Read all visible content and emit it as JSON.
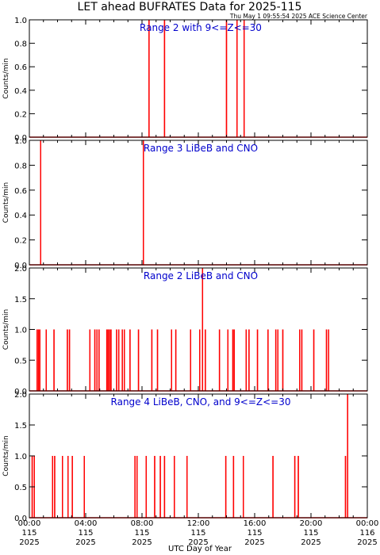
{
  "title": "LET ahead BUFRATES Data for 2025-115",
  "timestamp": "Thu May  1 09:55:54 2025 ACE Science Center",
  "xlabel": "UTC Day of Year",
  "x_ticks": [
    {
      "hour": 0,
      "time": "00:00",
      "doy": "115",
      "year": "2025"
    },
    {
      "hour": 4,
      "time": "04:00",
      "doy": "115",
      "year": "2025"
    },
    {
      "hour": 8,
      "time": "08:00",
      "doy": "115",
      "year": "2025"
    },
    {
      "hour": 12,
      "time": "12:00",
      "doy": "115",
      "year": "2025"
    },
    {
      "hour": 16,
      "time": "16:00",
      "doy": "115",
      "year": "2025"
    },
    {
      "hour": 20,
      "time": "20:00",
      "doy": "115",
      "year": "2025"
    },
    {
      "hour": 24,
      "time": "00:00",
      "doy": "116",
      "year": "2025"
    }
  ],
  "colors": {
    "series": "#ff0000",
    "panel_title": "#0000cc",
    "axes": "#000000"
  },
  "chart_data": [
    {
      "type": "line",
      "title": "Range 2 with 9<=Z<=30",
      "ylabel": "Counts/min",
      "xlim": [
        0,
        24
      ],
      "ylim": [
        0,
        1
      ],
      "yticks": [
        0.0,
        0.2,
        0.4,
        0.6,
        0.8,
        1.0
      ],
      "ytick_labels": [
        "0.0",
        "0.2",
        "0.4",
        "0.6",
        "0.8",
        "1.0"
      ],
      "spikes": [
        [
          8.5,
          1
        ],
        [
          9.6,
          1
        ],
        [
          14.0,
          1
        ],
        [
          14.75,
          1
        ],
        [
          15.25,
          1
        ]
      ]
    },
    {
      "type": "line",
      "title": "Range 3 LiBeB and CNO",
      "ylabel": "Counts/min",
      "xlim": [
        0,
        24
      ],
      "ylim": [
        0,
        1
      ],
      "yticks": [
        0.0,
        0.2,
        0.4,
        0.6,
        0.8,
        1.0
      ],
      "ytick_labels": [
        "0.0",
        "0.2",
        "0.4",
        "0.6",
        "0.8",
        "1.0"
      ],
      "spikes": [
        [
          0.8,
          1
        ],
        [
          8.1,
          1
        ]
      ]
    },
    {
      "type": "line",
      "title": "Range 2 LiBeB and CNO",
      "ylabel": "Counts/min",
      "xlim": [
        0,
        24
      ],
      "ylim": [
        0,
        2
      ],
      "yticks": [
        0.0,
        0.5,
        1.0,
        1.5,
        2.0
      ],
      "ytick_labels": [
        "0.0",
        "0.5",
        "1.0",
        "1.5",
        "2.0"
      ],
      "spikes": [
        [
          0.55,
          1
        ],
        [
          0.65,
          1
        ],
        [
          0.75,
          1
        ],
        [
          1.2,
          1
        ],
        [
          1.75,
          1
        ],
        [
          2.7,
          1
        ],
        [
          2.85,
          1
        ],
        [
          4.3,
          1
        ],
        [
          4.65,
          1
        ],
        [
          4.8,
          1
        ],
        [
          4.95,
          1
        ],
        [
          5.5,
          1
        ],
        [
          5.6,
          1
        ],
        [
          5.7,
          1
        ],
        [
          5.8,
          1
        ],
        [
          6.2,
          1
        ],
        [
          6.35,
          1
        ],
        [
          6.6,
          1
        ],
        [
          6.75,
          1
        ],
        [
          7.15,
          1
        ],
        [
          7.75,
          1
        ],
        [
          8.7,
          1
        ],
        [
          9.1,
          1
        ],
        [
          10.1,
          1
        ],
        [
          10.4,
          1
        ],
        [
          11.45,
          1
        ],
        [
          12.1,
          1
        ],
        [
          12.3,
          2
        ],
        [
          12.5,
          1
        ],
        [
          13.5,
          1
        ],
        [
          14.1,
          1
        ],
        [
          14.45,
          1
        ],
        [
          14.55,
          1
        ],
        [
          15.4,
          1
        ],
        [
          15.6,
          1
        ],
        [
          16.2,
          1
        ],
        [
          16.95,
          1
        ],
        [
          17.5,
          1
        ],
        [
          17.65,
          1
        ],
        [
          18.0,
          1
        ],
        [
          19.2,
          1
        ],
        [
          19.35,
          1
        ],
        [
          20.2,
          1
        ],
        [
          21.1,
          1
        ],
        [
          21.25,
          1
        ]
      ]
    },
    {
      "type": "line",
      "title": "Range 4 LiBeB, CNO, and 9<=Z<=30",
      "ylabel": "Counts/min",
      "xlim": [
        0,
        24
      ],
      "ylim": [
        0,
        2
      ],
      "yticks": [
        0.0,
        0.5,
        1.0,
        1.5,
        2.0
      ],
      "ytick_labels": [
        "0.0",
        "0.5",
        "1.0",
        "1.5",
        "2.0"
      ],
      "spikes": [
        [
          0.2,
          1
        ],
        [
          0.35,
          1
        ],
        [
          1.65,
          1
        ],
        [
          1.8,
          1
        ],
        [
          2.35,
          1
        ],
        [
          2.75,
          1
        ],
        [
          3.05,
          1
        ],
        [
          3.9,
          1
        ],
        [
          7.5,
          1
        ],
        [
          7.65,
          1
        ],
        [
          8.3,
          1
        ],
        [
          8.9,
          1
        ],
        [
          9.3,
          1
        ],
        [
          9.6,
          1
        ],
        [
          10.3,
          1
        ],
        [
          11.2,
          1
        ],
        [
          13.95,
          1
        ],
        [
          14.5,
          1
        ],
        [
          15.2,
          1
        ],
        [
          17.3,
          1
        ],
        [
          18.85,
          1
        ],
        [
          19.1,
          1
        ],
        [
          22.45,
          1
        ],
        [
          22.6,
          2
        ]
      ]
    }
  ]
}
